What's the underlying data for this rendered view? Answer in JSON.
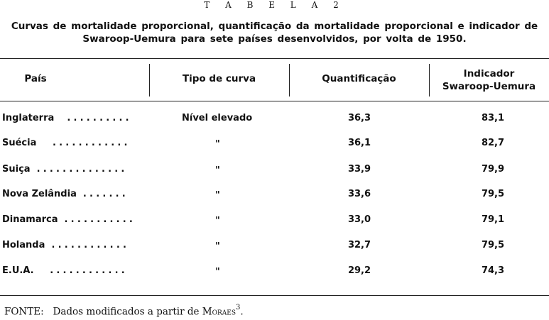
{
  "table_label": "T A B E L A  2",
  "caption": "Curvas de mortalidade proporcional, quantificação da mortalidade proporcional e indicador de Swaroop-Uemura para sete países desenvolvidos, por volta de 1950.",
  "headers": {
    "pais": "País",
    "tipo": "Tipo de curva",
    "quant": "Quantificação",
    "indicador_line1": "Indicador",
    "indicador_line2": "Swaroop-Uemura"
  },
  "rows": [
    {
      "country": "Inglaterra",
      "leader": "..........",
      "tipo": "Nível elevado",
      "quant": "36,3",
      "indicador": "83,1"
    },
    {
      "country": "Suécia",
      "leader": "............",
      "tipo": "\"",
      "quant": "36,1",
      "indicador": "82,7"
    },
    {
      "country": "Suiça",
      "leader": "..............",
      "tipo": "\"",
      "quant": "33,9",
      "indicador": "79,9"
    },
    {
      "country": "Nova Zelândia",
      "leader": ".......",
      "tipo": "\"",
      "quant": "33,6",
      "indicador": "79,5"
    },
    {
      "country": "Dinamarca",
      "leader": "...........",
      "tipo": "\"",
      "quant": "33,0",
      "indicador": "79,1"
    },
    {
      "country": "Holanda",
      "leader": "............",
      "tipo": "\"",
      "quant": "32,7",
      "indicador": "79,5"
    },
    {
      "country": "E.U.A.",
      "leader": "............",
      "tipo": "\"",
      "quant": "29,2",
      "indicador": "74,3"
    }
  ],
  "fonte": {
    "label": "FONTE:",
    "text": "Dados modificados a partir de",
    "author": "Moraes",
    "ref": "3",
    "end": "."
  }
}
